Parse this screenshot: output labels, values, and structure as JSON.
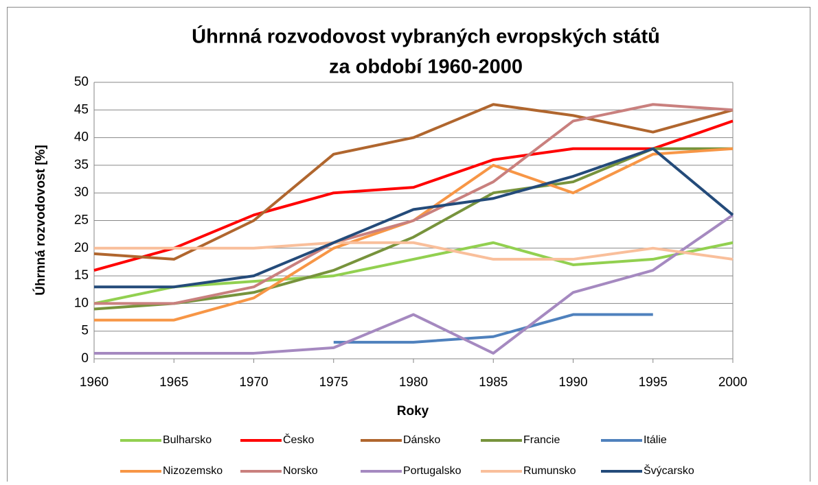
{
  "chart_data": {
    "type": "line",
    "title": [
      "Úhrnná rozvodovost vybraných evropských států",
      "za období 1960-2000"
    ],
    "x_label": "Roky",
    "y_label": "Úhrnná rozvodovost [%]",
    "x": [
      1960,
      1965,
      1970,
      1975,
      1980,
      1985,
      1990,
      1995,
      2000
    ],
    "xlim": [
      1960,
      2000
    ],
    "xticks": [
      1960,
      1965,
      1970,
      1975,
      1980,
      1985,
      1990,
      1995,
      2000
    ],
    "ylim": [
      0,
      50
    ],
    "yticks": [
      0,
      5,
      10,
      15,
      20,
      25,
      30,
      35,
      40,
      45,
      50
    ],
    "grid": true,
    "legend": "bottom",
    "series": [
      {
        "name": "Bulharsko",
        "color": "#92d050",
        "values": [
          10,
          13,
          14,
          15,
          18,
          21,
          17,
          18,
          21
        ]
      },
      {
        "name": "Česko",
        "color": "#ff0000",
        "values": [
          16,
          20,
          26,
          30,
          31,
          36,
          38,
          38,
          43
        ]
      },
      {
        "name": "Dánsko",
        "color": "#b0662e",
        "values": [
          19,
          18,
          25,
          37,
          40,
          46,
          44,
          41,
          45
        ]
      },
      {
        "name": "Francie",
        "color": "#77933c",
        "values": [
          9,
          10,
          12,
          16,
          22,
          30,
          32,
          38,
          38
        ]
      },
      {
        "name": "Itálie",
        "color": "#4f81bd",
        "values": [
          null,
          null,
          null,
          3,
          3,
          4,
          8,
          8,
          null
        ]
      },
      {
        "name": "Nizozemsko",
        "color": "#f79646",
        "values": [
          7,
          7,
          11,
          20,
          25,
          35,
          30,
          37,
          38
        ]
      },
      {
        "name": "Norsko",
        "color": "#c9807e",
        "values": [
          10,
          10,
          13,
          21,
          25,
          32,
          43,
          46,
          45
        ]
      },
      {
        "name": "Portugalsko",
        "color": "#a589c0",
        "values": [
          1,
          1,
          1,
          2,
          8,
          1,
          12,
          16,
          26
        ]
      },
      {
        "name": "Rumunsko",
        "color": "#f9bf9b",
        "values": [
          20,
          20,
          20,
          21,
          21,
          18,
          18,
          20,
          18
        ]
      },
      {
        "name": "Švýcarsko",
        "color": "#244b7a",
        "values": [
          13,
          13,
          15,
          21,
          27,
          29,
          33,
          38,
          26
        ]
      }
    ]
  }
}
